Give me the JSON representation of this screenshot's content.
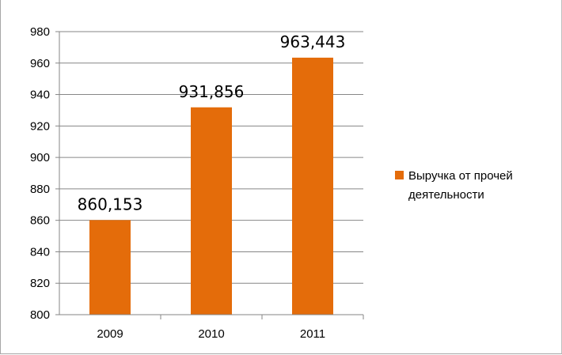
{
  "chart_data": {
    "type": "bar",
    "categories": [
      "2009",
      "2010",
      "2011"
    ],
    "series": [
      {
        "name": "Выручка от прочей деятельности",
        "values": [
          860.153,
          931.856,
          963.443
        ],
        "data_labels": [
          "860,153",
          "931,856",
          "963,443"
        ],
        "color": "#E46C0A"
      }
    ],
    "ylim": [
      800,
      980
    ],
    "yticks": [
      "800",
      "820",
      "840",
      "860",
      "880",
      "900",
      "920",
      "940",
      "960",
      "980"
    ],
    "grid": true,
    "legend_position": "right",
    "legend_lines": [
      "Выручка от прочей",
      "деятельности"
    ]
  }
}
